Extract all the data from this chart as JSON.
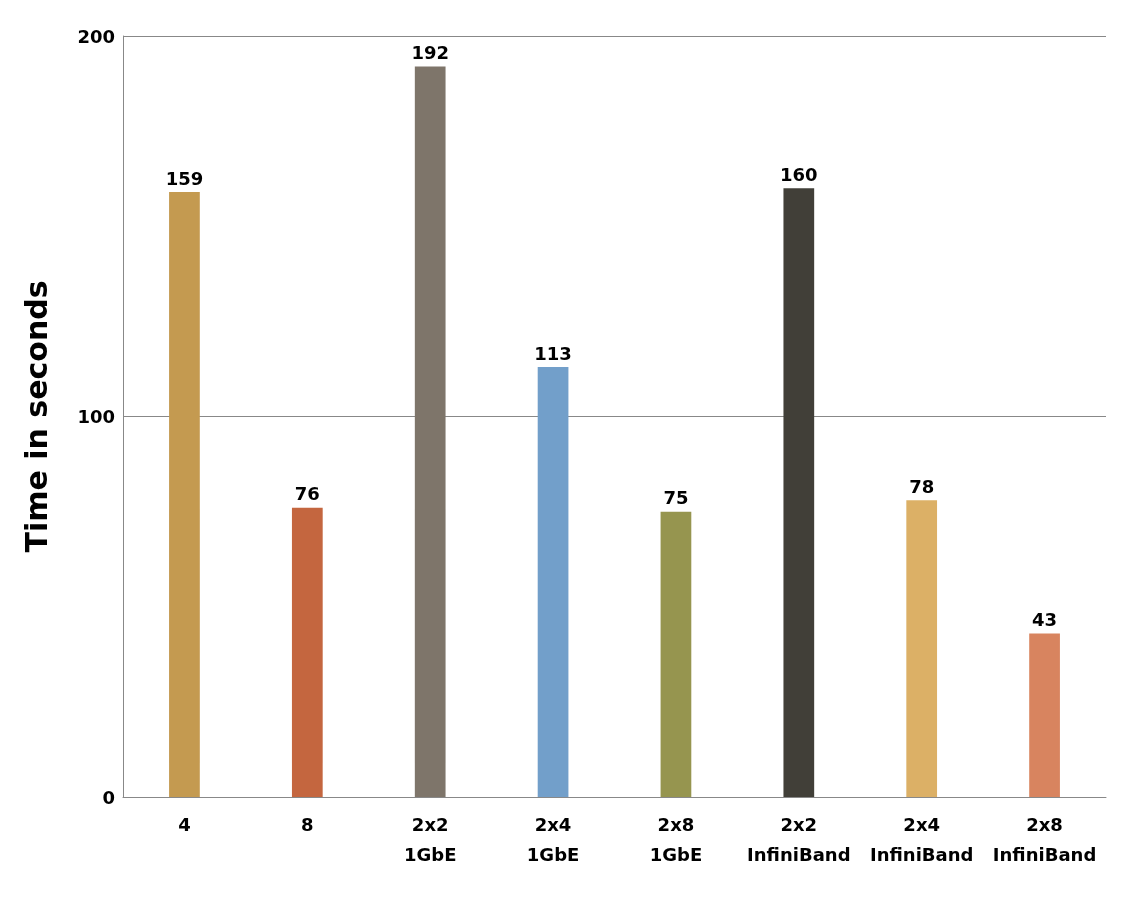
{
  "chart_data": {
    "type": "bar",
    "ylabel": "Time in seconds",
    "categories": [
      "4",
      "8",
      "2x2\n1GbE",
      "2x4\n1GbE",
      "2x8\n1GbE",
      "2x2\nInfiniBand",
      "2x4\nInfiniBand",
      "2x8\nInfiniBand"
    ],
    "values": [
      159,
      76,
      192,
      113,
      75,
      160,
      78,
      43
    ],
    "colors": [
      "#c49a50",
      "#c4663f",
      "#7e756a",
      "#729fca",
      "#96954f",
      "#413f38",
      "#dcb066",
      "#d8845f"
    ],
    "ylim": [
      0,
      200
    ],
    "yticks": [
      0,
      100,
      200
    ],
    "grid": "y",
    "data_labels": true
  }
}
